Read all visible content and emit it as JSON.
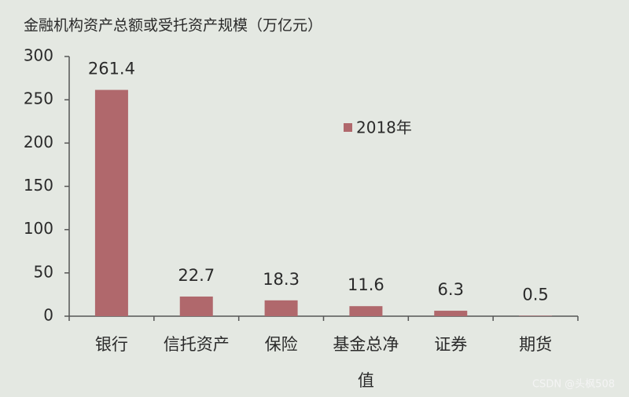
{
  "chart_data": {
    "type": "bar",
    "title": "金融机构资产总额或受托资产规模（万亿元）",
    "categories": [
      "银行",
      "信托资产",
      "保险",
      "基金总净值",
      "证券",
      "期货"
    ],
    "series": [
      {
        "name": "2018年",
        "color": "#b0686c",
        "values": [
          261.4,
          22.7,
          18.3,
          11.6,
          6.3,
          0.5
        ]
      }
    ],
    "ylim": [
      0,
      300
    ],
    "yticks": [
      0,
      50,
      100,
      150,
      200,
      250,
      300
    ],
    "grid": false,
    "data_labels": true,
    "legend": "upper center"
  },
  "watermark": "CSDN @头枫508"
}
